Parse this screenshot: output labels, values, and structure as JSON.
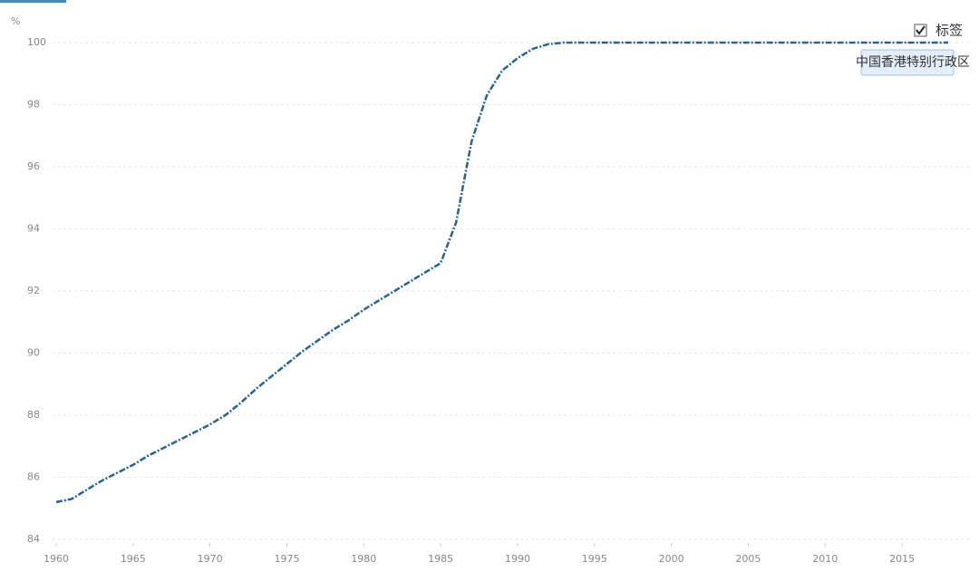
{
  "chart_data": {
    "type": "line",
    "ylabel": "%",
    "label_toggle": "标签",
    "x": [
      1960,
      1961,
      1962,
      1963,
      1964,
      1965,
      1966,
      1967,
      1968,
      1969,
      1970,
      1971,
      1972,
      1973,
      1974,
      1975,
      1976,
      1977,
      1978,
      1979,
      1980,
      1981,
      1982,
      1983,
      1984,
      1985,
      1986,
      1987,
      1988,
      1989,
      1990,
      1991,
      1992,
      1993,
      1994,
      1995,
      1996,
      1997,
      1998,
      1999,
      2000,
      2001,
      2002,
      2003,
      2004,
      2005,
      2006,
      2007,
      2008,
      2009,
      2010,
      2011,
      2012,
      2013,
      2014,
      2015,
      2016,
      2017,
      2018
    ],
    "series": [
      {
        "name": "中国香港特别行政区",
        "color": "#2b6488",
        "values": [
          85.2,
          85.3,
          85.6,
          85.9,
          86.15,
          86.4,
          86.7,
          86.95,
          87.2,
          87.45,
          87.7,
          88.0,
          88.4,
          88.85,
          89.25,
          89.65,
          90.05,
          90.4,
          90.75,
          91.05,
          91.4,
          91.7,
          92.0,
          92.3,
          92.6,
          92.9,
          94.2,
          96.8,
          98.3,
          99.1,
          99.5,
          99.8,
          99.95,
          100,
          100,
          100,
          100,
          100,
          100,
          100,
          100,
          100,
          100,
          100,
          100,
          100,
          100,
          100,
          100,
          100,
          100,
          100,
          100,
          100,
          100,
          100,
          100,
          100,
          100
        ]
      }
    ],
    "xlim": [
      1960,
      2018
    ],
    "xticks": [
      1960,
      1965,
      1970,
      1975,
      1980,
      1985,
      1990,
      1995,
      2000,
      2005,
      2010,
      2015
    ],
    "ylim": [
      84,
      100
    ],
    "yticks": [
      84,
      86,
      88,
      90,
      92,
      94,
      96,
      98,
      100
    ],
    "grid": true
  }
}
